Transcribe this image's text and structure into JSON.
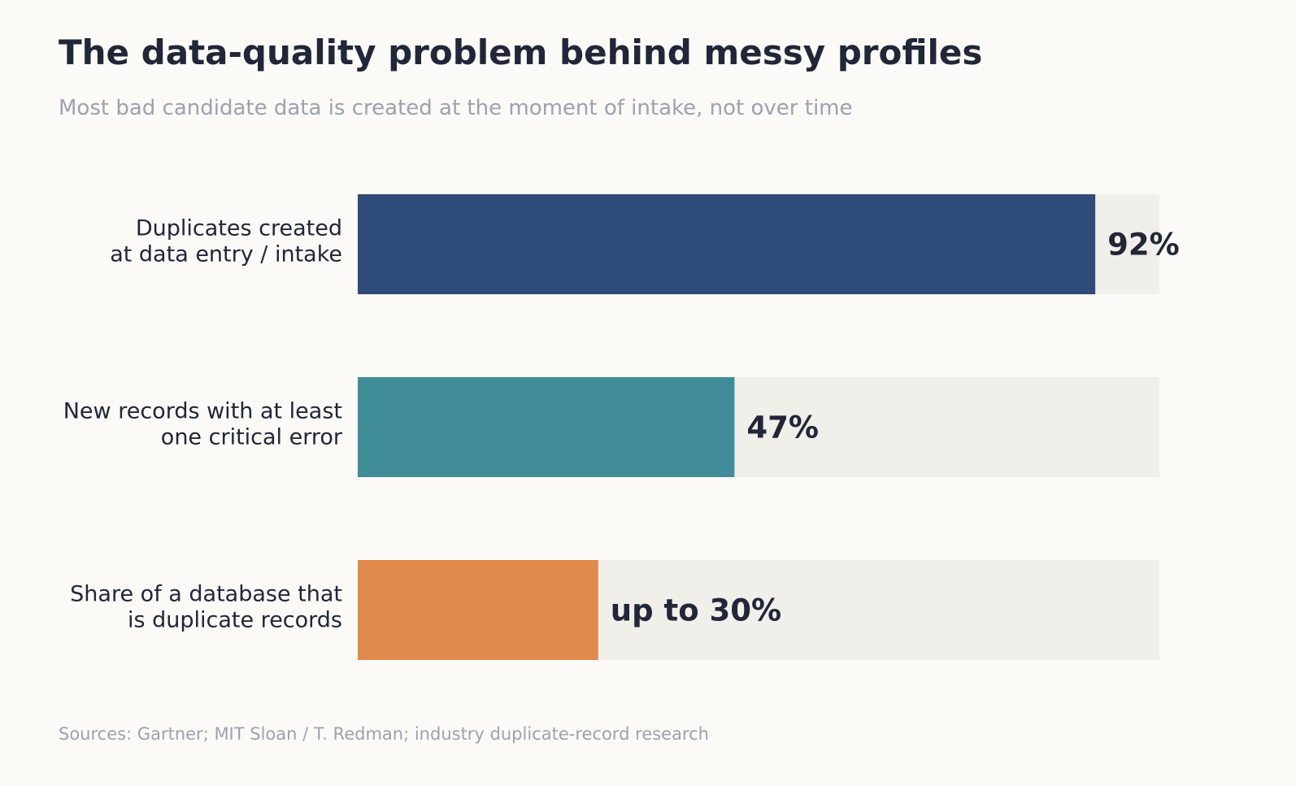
{
  "chart_data": {
    "type": "bar",
    "orientation": "horizontal",
    "title": "The data-quality problem behind messy profiles",
    "subtitle": "Most bad candidate data is created at the moment of intake, not over time",
    "categories": [
      [
        "Duplicates created",
        "at data entry / intake"
      ],
      [
        "New records with at least",
        "one critical error"
      ],
      [
        "Share of a database that",
        "is duplicate records"
      ]
    ],
    "values": [
      92,
      47,
      30
    ],
    "value_labels": [
      "92%",
      "47%",
      "up to 30%"
    ],
    "colors": [
      "#2f4b79",
      "#408d99",
      "#e08a4c"
    ],
    "track_color": "#f0efea",
    "xlim": [
      0,
      100
    ],
    "grid": false,
    "legend": "none",
    "source": "Sources: Gartner; MIT Sloan / T. Redman; industry duplicate-record research"
  }
}
